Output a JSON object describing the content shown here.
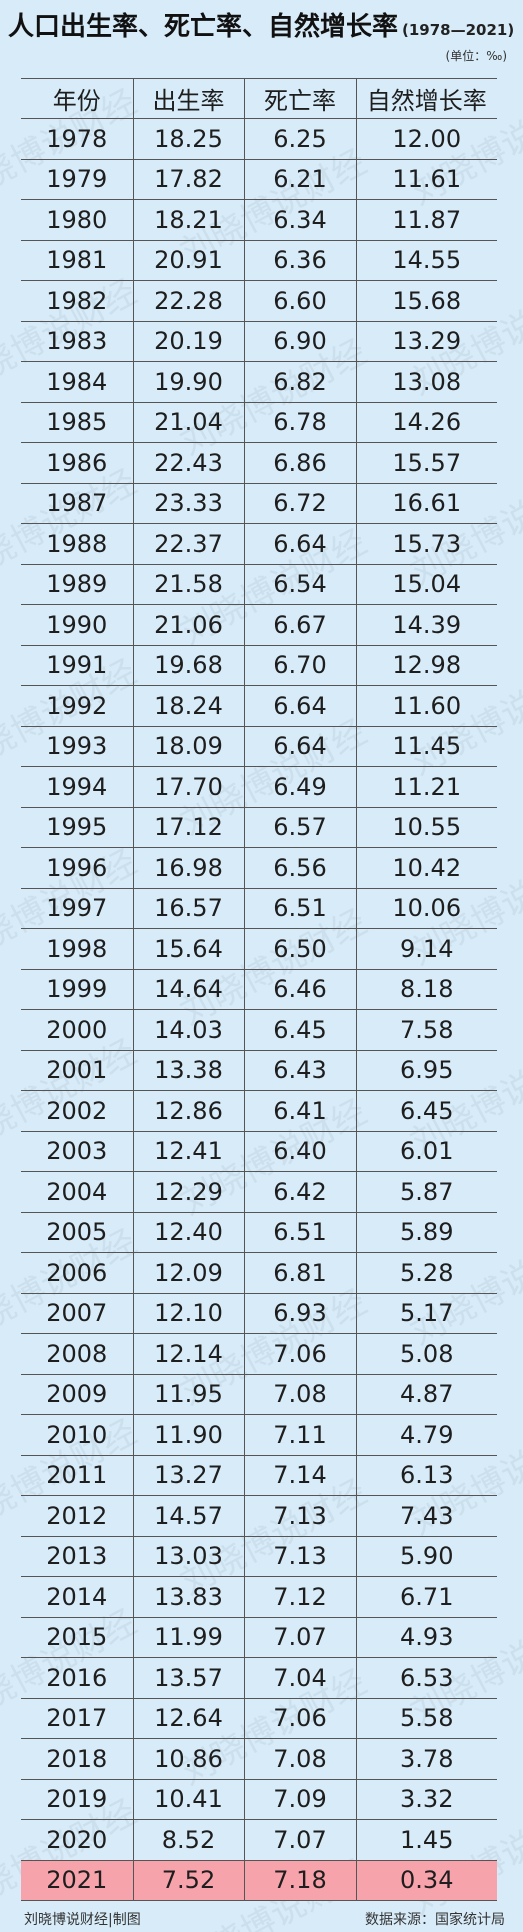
{
  "header": {
    "title": "人口出生率、死亡率、自然增长率",
    "range": "(1978—2021)",
    "unit": "(单位：‰)"
  },
  "chart_data": {
    "type": "table",
    "columns": [
      "年份",
      "出生率",
      "死亡率",
      "自然增长率"
    ],
    "rows": [
      [
        "1978",
        "18.25",
        "6.25",
        "12.00"
      ],
      [
        "1979",
        "17.82",
        "6.21",
        "11.61"
      ],
      [
        "1980",
        "18.21",
        "6.34",
        "11.87"
      ],
      [
        "1981",
        "20.91",
        "6.36",
        "14.55"
      ],
      [
        "1982",
        "22.28",
        "6.60",
        "15.68"
      ],
      [
        "1983",
        "20.19",
        "6.90",
        "13.29"
      ],
      [
        "1984",
        "19.90",
        "6.82",
        "13.08"
      ],
      [
        "1985",
        "21.04",
        "6.78",
        "14.26"
      ],
      [
        "1986",
        "22.43",
        "6.86",
        "15.57"
      ],
      [
        "1987",
        "23.33",
        "6.72",
        "16.61"
      ],
      [
        "1988",
        "22.37",
        "6.64",
        "15.73"
      ],
      [
        "1989",
        "21.58",
        "6.54",
        "15.04"
      ],
      [
        "1990",
        "21.06",
        "6.67",
        "14.39"
      ],
      [
        "1991",
        "19.68",
        "6.70",
        "12.98"
      ],
      [
        "1992",
        "18.24",
        "6.64",
        "11.60"
      ],
      [
        "1993",
        "18.09",
        "6.64",
        "11.45"
      ],
      [
        "1994",
        "17.70",
        "6.49",
        "11.21"
      ],
      [
        "1995",
        "17.12",
        "6.57",
        "10.55"
      ],
      [
        "1996",
        "16.98",
        "6.56",
        "10.42"
      ],
      [
        "1997",
        "16.57",
        "6.51",
        "10.06"
      ],
      [
        "1998",
        "15.64",
        "6.50",
        "9.14"
      ],
      [
        "1999",
        "14.64",
        "6.46",
        "8.18"
      ],
      [
        "2000",
        "14.03",
        "6.45",
        "7.58"
      ],
      [
        "2001",
        "13.38",
        "6.43",
        "6.95"
      ],
      [
        "2002",
        "12.86",
        "6.41",
        "6.45"
      ],
      [
        "2003",
        "12.41",
        "6.40",
        "6.01"
      ],
      [
        "2004",
        "12.29",
        "6.42",
        "5.87"
      ],
      [
        "2005",
        "12.40",
        "6.51",
        "5.89"
      ],
      [
        "2006",
        "12.09",
        "6.81",
        "5.28"
      ],
      [
        "2007",
        "12.10",
        "6.93",
        "5.17"
      ],
      [
        "2008",
        "12.14",
        "7.06",
        "5.08"
      ],
      [
        "2009",
        "11.95",
        "7.08",
        "4.87"
      ],
      [
        "2010",
        "11.90",
        "7.11",
        "4.79"
      ],
      [
        "2011",
        "13.27",
        "7.14",
        "6.13"
      ],
      [
        "2012",
        "14.57",
        "7.13",
        "7.43"
      ],
      [
        "2013",
        "13.03",
        "7.13",
        "5.90"
      ],
      [
        "2014",
        "13.83",
        "7.12",
        "6.71"
      ],
      [
        "2015",
        "11.99",
        "7.07",
        "4.93"
      ],
      [
        "2016",
        "13.57",
        "7.04",
        "6.53"
      ],
      [
        "2017",
        "12.64",
        "7.06",
        "5.58"
      ],
      [
        "2018",
        "10.86",
        "7.08",
        "3.78"
      ],
      [
        "2019",
        "10.41",
        "7.09",
        "3.32"
      ],
      [
        "2020",
        "8.52",
        "7.07",
        "1.45"
      ],
      [
        "2021",
        "7.52",
        "7.18",
        "0.34"
      ]
    ],
    "highlight_row": "2021",
    "highlight_color": "#f7a3ab"
  },
  "footer": {
    "credit": "刘晓博说财经|制图",
    "source": "数据来源：国家统计局"
  },
  "watermark": "刘晓博说财经",
  "colors": {
    "background": "#d7ebf8",
    "highlight": "#f7a3ab",
    "rule": "#555555"
  }
}
